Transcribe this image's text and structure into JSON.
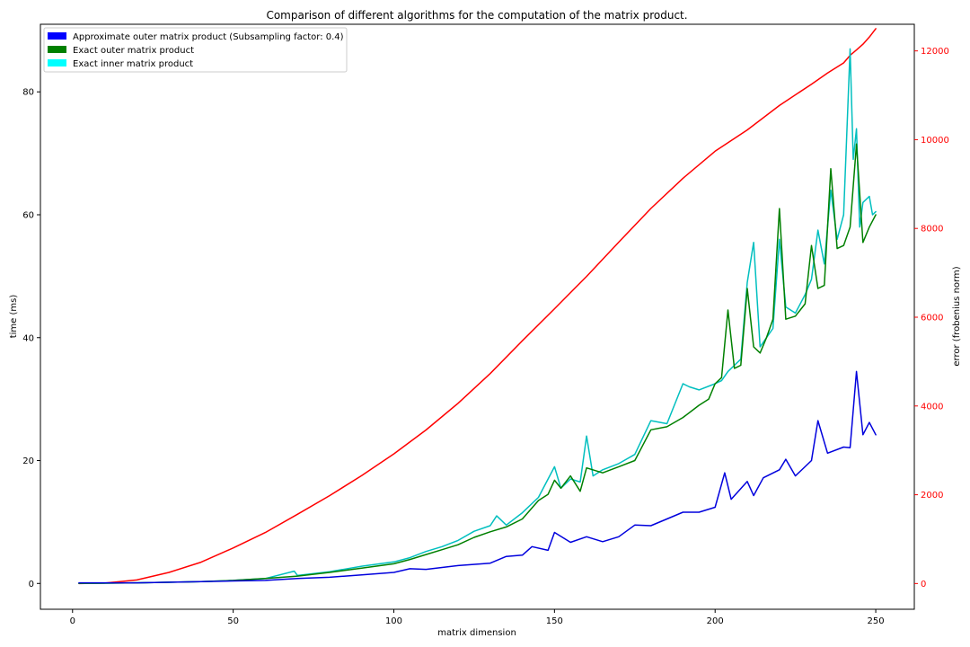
{
  "chart_data": {
    "type": "line",
    "title": "Comparison of different algorithms for the computation of the matrix product.",
    "xlabel": "matrix dimension",
    "ylabel": "time (ms)",
    "y2label": "error (frobenius norm)",
    "xlim": [
      -10,
      262
    ],
    "ylim": [
      -4.2,
      91
    ],
    "y2lim": [
      -580,
      12600
    ],
    "xticks": [
      0,
      50,
      100,
      150,
      200,
      250
    ],
    "yticks": [
      0,
      20,
      40,
      60,
      80
    ],
    "y2ticks": [
      0,
      2000,
      4000,
      6000,
      8000,
      10000,
      12000
    ],
    "grid": false,
    "legend_position": "top-left",
    "legend": [
      {
        "label": "Approximate outer matrix product (Subsampling factor: 0.4)",
        "color": "#0000ff"
      },
      {
        "label": "Exact outer matrix product",
        "color": "#008000"
      },
      {
        "label": "Exact inner matrix product",
        "color": "#00ffff"
      }
    ],
    "series": [
      {
        "name": "Approximate outer matrix product (Subsampling factor: 0.4)",
        "axis": "left",
        "color": "#0000dd",
        "x": [
          2,
          20,
          40,
          50,
          60,
          70,
          80,
          90,
          100,
          105,
          110,
          120,
          130,
          135,
          140,
          143,
          148,
          150,
          155,
          160,
          165,
          170,
          175,
          180,
          185,
          190,
          195,
          200,
          203,
          205,
          210,
          212,
          215,
          220,
          222,
          225,
          230,
          232,
          235,
          240,
          242,
          244,
          246,
          248,
          250
        ],
        "y": [
          0.1,
          0.1,
          0.3,
          0.4,
          0.5,
          0.8,
          1.0,
          1.4,
          1.8,
          2.4,
          2.3,
          2.9,
          3.3,
          4.4,
          4.6,
          6.0,
          5.4,
          8.3,
          6.7,
          7.6,
          6.8,
          7.6,
          9.5,
          9.4,
          10.5,
          11.6,
          11.6,
          12.4,
          18.0,
          13.7,
          16.6,
          14.3,
          17.2,
          18.5,
          20.2,
          17.5,
          20.0,
          26.5,
          21.2,
          22.2,
          22.1,
          34.5,
          24.2,
          26.2,
          24.2
        ]
      },
      {
        "name": "Exact outer matrix product",
        "axis": "left",
        "color": "#008000",
        "x": [
          2,
          20,
          40,
          50,
          60,
          70,
          80,
          90,
          100,
          105,
          110,
          115,
          120,
          125,
          130,
          135,
          140,
          145,
          148,
          150,
          152,
          155,
          158,
          160,
          165,
          170,
          175,
          180,
          185,
          190,
          195,
          198,
          200,
          202,
          204,
          206,
          208,
          210,
          212,
          214,
          216,
          218,
          220,
          222,
          225,
          228,
          230,
          232,
          234,
          236,
          238,
          240,
          242,
          244,
          246,
          248,
          250
        ],
        "y": [
          0.0,
          0.1,
          0.3,
          0.5,
          0.8,
          1.2,
          1.8,
          2.5,
          3.2,
          3.9,
          4.7,
          5.5,
          6.3,
          7.5,
          8.4,
          9.2,
          10.5,
          13.5,
          14.5,
          16.8,
          15.5,
          17.5,
          15.0,
          18.8,
          18.0,
          19.0,
          20.0,
          25.0,
          25.5,
          27.0,
          29.0,
          30.0,
          32.5,
          33.5,
          44.5,
          35.0,
          35.5,
          48.0,
          38.5,
          37.5,
          40.0,
          43.0,
          61.0,
          43.0,
          43.5,
          45.5,
          55.0,
          48.0,
          48.5,
          67.5,
          54.5,
          55.0,
          58.0,
          71.5,
          55.5,
          58.0,
          60.0
        ]
      },
      {
        "name": "Exact inner matrix product",
        "axis": "left",
        "color": "#00bfbf",
        "x": [
          2,
          20,
          40,
          50,
          60,
          69,
          70,
          80,
          90,
          100,
          105,
          110,
          115,
          120,
          125,
          130,
          132,
          135,
          140,
          145,
          150,
          152,
          155,
          158,
          160,
          162,
          165,
          170,
          175,
          180,
          185,
          190,
          192,
          195,
          200,
          202,
          204,
          206,
          208,
          210,
          212,
          214,
          216,
          218,
          220,
          222,
          225,
          228,
          230,
          232,
          234,
          236,
          238,
          240,
          242,
          243,
          244,
          245,
          246,
          248,
          249,
          250
        ],
        "y": [
          0.0,
          0.1,
          0.3,
          0.5,
          0.8,
          2.0,
          1.3,
          1.9,
          2.8,
          3.5,
          4.2,
          5.2,
          6.0,
          7.0,
          8.5,
          9.4,
          11.0,
          9.5,
          11.5,
          14.0,
          19.0,
          15.5,
          17.0,
          16.5,
          24.0,
          17.5,
          18.5,
          19.5,
          21.0,
          26.5,
          26.0,
          32.5,
          32.0,
          31.5,
          32.5,
          33.0,
          34.5,
          35.5,
          36.5,
          49.0,
          55.5,
          38.5,
          40.0,
          41.5,
          56.0,
          45.0,
          44.0,
          47.0,
          49.5,
          57.5,
          52.0,
          64.0,
          56.0,
          60.0,
          87.0,
          69.0,
          74.0,
          58.0,
          62.0,
          63.0,
          60.0,
          60.5
        ]
      },
      {
        "name": "Error (frobenius norm)",
        "axis": "right",
        "color": "#ff0000",
        "x": [
          2,
          10,
          20,
          30,
          40,
          50,
          60,
          70,
          80,
          90,
          100,
          110,
          120,
          130,
          140,
          150,
          160,
          170,
          180,
          190,
          200,
          210,
          220,
          230,
          235,
          240,
          242,
          244,
          246,
          248,
          250
        ],
        "y": [
          0,
          10,
          80,
          250,
          480,
          800,
          1150,
          1560,
          1980,
          2430,
          2920,
          3460,
          4060,
          4730,
          5470,
          6190,
          6920,
          7690,
          8450,
          9130,
          9740,
          10220,
          10770,
          11250,
          11500,
          11730,
          11900,
          12020,
          12150,
          12310,
          12500
        ]
      }
    ]
  }
}
